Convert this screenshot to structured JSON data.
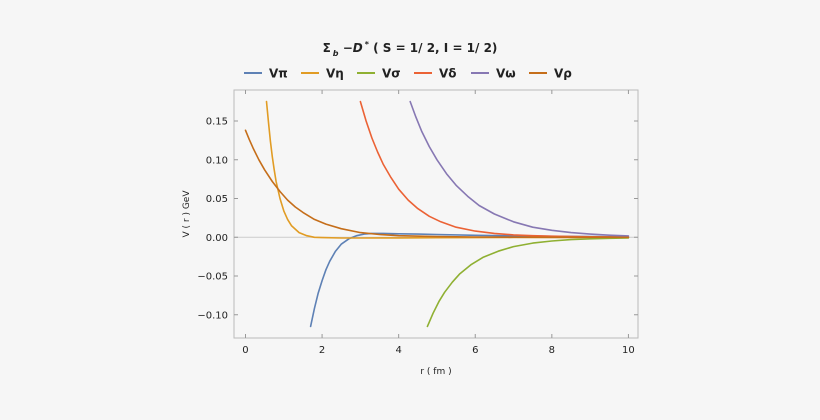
{
  "chart_data": {
    "type": "line",
    "title": "Σ b −D * ( S = 1/ 2,  I = 1/ 2)",
    "title_parts": {
      "symbol": "Σ",
      "sub": "b",
      "mid": " −D",
      "sup": "*",
      "tail": " ( S = 1/ 2,  I = 1/ 2)"
    },
    "xlabel": "r ( fm )",
    "ylabel": "V ( r )   GeV",
    "xlim": [
      -0.3,
      10.25
    ],
    "ylim": [
      -0.13,
      0.19
    ],
    "x_ticks": [
      0,
      2,
      4,
      6,
      8,
      10
    ],
    "x_tick_labels": [
      "0",
      "2",
      "4",
      "6",
      "8",
      "10"
    ],
    "y_ticks": [
      0.15,
      0.1,
      0.05,
      0.0,
      -0.05,
      -0.1
    ],
    "y_tick_labels": [
      "0.15",
      "0.10",
      "0.05",
      "0.00",
      "−0.05",
      "−0.10"
    ],
    "legend_position": "top",
    "series": [
      {
        "name": "Vπ",
        "color": "#5e81b5",
        "x": [
          1.7,
          1.8,
          1.9,
          2.0,
          2.1,
          2.2,
          2.35,
          2.5,
          2.7,
          2.9,
          3.1,
          3.3,
          3.6,
          4.0,
          4.5,
          5.0,
          6.0,
          7.0,
          8.0,
          9.0,
          10.0
        ],
        "y": [
          -0.115,
          -0.092,
          -0.072,
          -0.056,
          -0.042,
          -0.031,
          -0.018,
          -0.009,
          -0.002,
          0.002,
          0.004,
          0.005,
          0.005,
          0.0045,
          0.004,
          0.0035,
          0.0025,
          0.0018,
          0.0012,
          0.0008,
          0.0005
        ]
      },
      {
        "name": "Vη",
        "color": "#e19c24",
        "x": [
          0.55,
          0.6,
          0.65,
          0.7,
          0.75,
          0.8,
          0.9,
          1.0,
          1.1,
          1.2,
          1.4,
          1.6,
          1.8,
          2.0,
          2.5,
          3.0,
          4.0,
          5.0,
          6.0,
          7.0,
          8.0,
          9.0,
          10.0
        ],
        "y": [
          0.175,
          0.148,
          0.124,
          0.104,
          0.087,
          0.072,
          0.05,
          0.034,
          0.023,
          0.015,
          0.006,
          0.002,
          0.0,
          -0.0005,
          -0.001,
          -0.001,
          -0.0008,
          -0.0006,
          -0.0004,
          -0.0003,
          -0.0002,
          -0.0001,
          -0.0001
        ]
      },
      {
        "name": "Vσ",
        "color": "#8fb032",
        "x": [
          4.75,
          4.9,
          5.05,
          5.2,
          5.4,
          5.6,
          5.9,
          6.2,
          6.6,
          7.0,
          7.5,
          8.0,
          8.5,
          9.0,
          9.5,
          10.0
        ],
        "y": [
          -0.115,
          -0.098,
          -0.083,
          -0.071,
          -0.058,
          -0.047,
          -0.035,
          -0.026,
          -0.018,
          -0.012,
          -0.0075,
          -0.0048,
          -0.003,
          -0.002,
          -0.0013,
          -0.0008
        ]
      },
      {
        "name": "Vδ",
        "color": "#eb6235",
        "x": [
          3.0,
          3.15,
          3.3,
          3.45,
          3.6,
          3.8,
          4.0,
          4.25,
          4.5,
          4.8,
          5.1,
          5.5,
          6.0,
          6.5,
          7.0,
          7.5,
          8.0,
          9.0,
          10.0
        ],
        "y": [
          0.175,
          0.15,
          0.128,
          0.11,
          0.094,
          0.077,
          0.062,
          0.048,
          0.037,
          0.027,
          0.02,
          0.013,
          0.008,
          0.005,
          0.003,
          0.002,
          0.0013,
          0.0006,
          0.0003
        ]
      },
      {
        "name": "Vω",
        "color": "#8778b3",
        "x": [
          4.3,
          4.45,
          4.6,
          4.8,
          5.0,
          5.25,
          5.5,
          5.8,
          6.1,
          6.5,
          7.0,
          7.5,
          8.0,
          8.5,
          9.0,
          9.5,
          10.0
        ],
        "y": [
          0.175,
          0.155,
          0.137,
          0.117,
          0.1,
          0.082,
          0.067,
          0.053,
          0.041,
          0.03,
          0.02,
          0.013,
          0.009,
          0.006,
          0.004,
          0.0027,
          0.0018
        ]
      },
      {
        "name": "Vρ",
        "color": "#c56e1a",
        "x": [
          0.0,
          0.1,
          0.2,
          0.35,
          0.5,
          0.7,
          0.9,
          1.1,
          1.3,
          1.5,
          1.8,
          2.1,
          2.5,
          3.0,
          3.5,
          4.0,
          5.0,
          6.0,
          7.0,
          8.0,
          9.0,
          10.0
        ],
        "y": [
          0.138,
          0.126,
          0.115,
          0.1,
          0.087,
          0.072,
          0.059,
          0.048,
          0.039,
          0.032,
          0.023,
          0.017,
          0.011,
          0.006,
          0.0035,
          0.002,
          0.0008,
          0.0003,
          0.0001,
          0.0,
          0.0,
          0.0
        ]
      }
    ]
  }
}
